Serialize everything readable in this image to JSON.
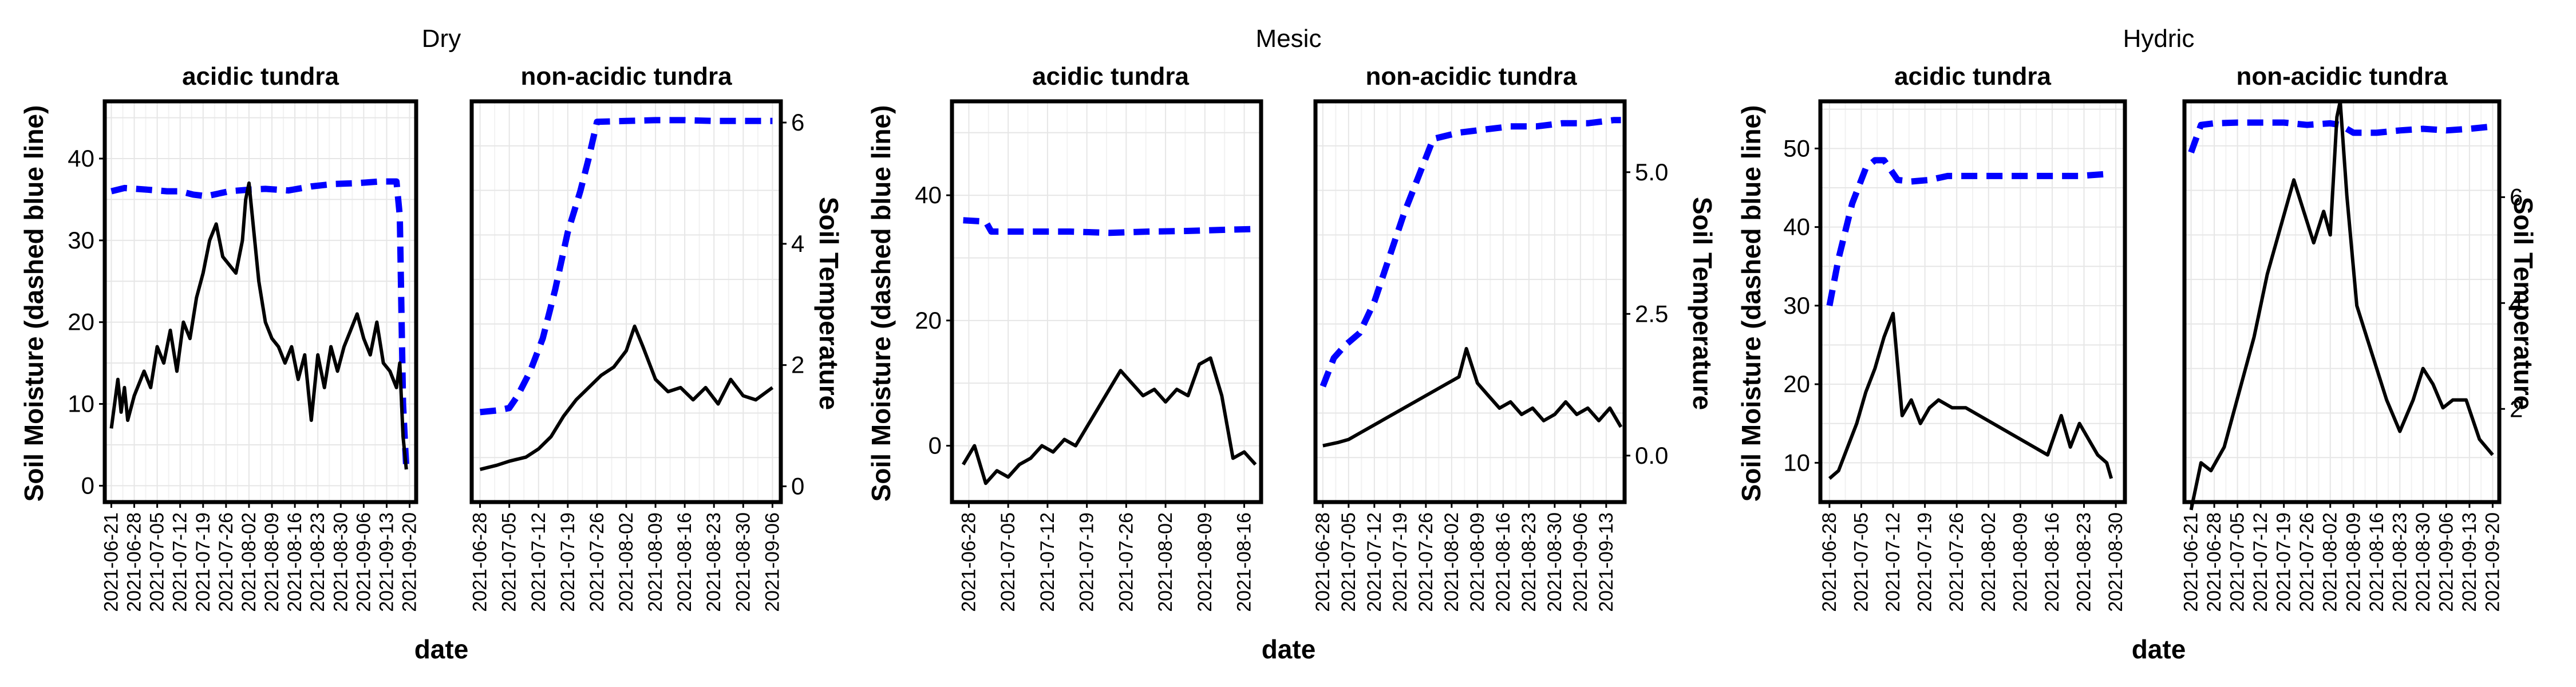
{
  "figure": {
    "groups": [
      {
        "title": "Dry",
        "ylabel": "Soil Moisture (dashed blue line)",
        "y2label": "Soil Temperature",
        "xlabel": "date",
        "panels": [
          {
            "subtitle": "acidic tundra",
            "x_ticks": [
              "2021-06-21",
              "2021-06-28",
              "2021-07-05",
              "2021-07-12",
              "2021-07-19",
              "2021-07-26",
              "2021-08-02",
              "2021-08-09",
              "2021-08-16",
              "2021-08-23",
              "2021-08-30",
              "2021-09-06",
              "2021-09-13",
              "2021-09-20"
            ]
          },
          {
            "subtitle": "non-acidic tundra",
            "x_ticks": [
              "2021-06-28",
              "2021-07-05",
              "2021-07-12",
              "2021-07-19",
              "2021-07-26",
              "2021-08-02",
              "2021-08-09",
              "2021-08-16",
              "2021-08-23",
              "2021-08-30",
              "2021-09-06"
            ]
          }
        ]
      },
      {
        "title": "Mesic",
        "ylabel": "Soil Moisture (dashed blue line)",
        "y2label": "Soil Temperature",
        "xlabel": "date",
        "panels": [
          {
            "subtitle": "acidic tundra",
            "x_ticks": [
              "2021-06-28",
              "2021-07-05",
              "2021-07-12",
              "2021-07-19",
              "2021-07-26",
              "2021-08-02",
              "2021-08-09",
              "2021-08-16"
            ]
          },
          {
            "subtitle": "non-acidic tundra",
            "x_ticks": [
              "2021-06-28",
              "2021-07-05",
              "2021-07-12",
              "2021-07-19",
              "2021-07-26",
              "2021-08-02",
              "2021-08-09",
              "2021-08-16",
              "2021-08-23",
              "2021-08-30",
              "2021-09-06",
              "2021-09-13"
            ]
          }
        ]
      },
      {
        "title": "Hydric",
        "ylabel": "Soil Moisture (dashed blue line)",
        "y2label": "Soil Temperature",
        "xlabel": "date",
        "panels": [
          {
            "subtitle": "acidic tundra",
            "x_ticks": [
              "2021-06-28",
              "2021-07-05",
              "2021-07-12",
              "2021-07-19",
              "2021-07-26",
              "2021-08-02",
              "2021-08-09",
              "2021-08-16",
              "2021-08-23",
              "2021-08-30"
            ]
          },
          {
            "subtitle": "non-acidic tundra",
            "x_ticks": [
              "2021-06-21",
              "2021-06-28",
              "2021-07-05",
              "2021-07-12",
              "2021-07-19",
              "2021-07-26",
              "2021-08-02",
              "2021-08-09",
              "2021-08-16",
              "2021-08-23",
              "2021-08-30",
              "2021-09-06",
              "2021-09-13",
              "2021-09-20"
            ]
          }
        ]
      }
    ]
  },
  "colors": {
    "moisture": "#0000ff",
    "temperature": "#000000",
    "grid": "#e6e6e6",
    "frame": "#000000",
    "text": "#000000"
  },
  "chart_data": [
    {
      "type": "line",
      "group": "Dry",
      "title": "acidic tundra",
      "xlabel": "date",
      "ylabel": "Soil Moisture (dashed blue line)",
      "y2label": "Soil Temperature",
      "xlim": [
        "2021-06-19",
        "2021-09-22"
      ],
      "ylim": [
        -2,
        47
      ],
      "yticks": [
        0,
        10,
        20,
        30,
        40
      ],
      "y2ticks": [],
      "grid": true,
      "series": [
        {
          "name": "Soil Moisture",
          "axis": "left",
          "style": "dashed",
          "x": [
            "2021-06-21",
            "2021-06-25",
            "2021-07-02",
            "2021-07-08",
            "2021-07-12",
            "2021-07-16",
            "2021-07-20",
            "2021-07-27",
            "2021-08-02",
            "2021-08-07",
            "2021-08-14",
            "2021-08-21",
            "2021-08-28",
            "2021-09-04",
            "2021-09-11",
            "2021-09-16",
            "2021-09-17",
            "2021-09-18",
            "2021-09-19"
          ],
          "y": [
            36.0,
            36.4,
            36.2,
            36.0,
            36.0,
            35.6,
            35.4,
            36.0,
            36.2,
            36.3,
            36.1,
            36.6,
            36.9,
            37.0,
            37.2,
            37.2,
            33.0,
            10.0,
            2.0
          ]
        },
        {
          "name": "Soil Temperature",
          "axis": "left",
          "style": "solid",
          "x": [
            "2021-06-21",
            "2021-06-22",
            "2021-06-23",
            "2021-06-24",
            "2021-06-25",
            "2021-06-26",
            "2021-06-28",
            "2021-07-01",
            "2021-07-03",
            "2021-07-05",
            "2021-07-07",
            "2021-07-09",
            "2021-07-11",
            "2021-07-13",
            "2021-07-15",
            "2021-07-17",
            "2021-07-19",
            "2021-07-21",
            "2021-07-23",
            "2021-07-25",
            "2021-07-27",
            "2021-07-29",
            "2021-07-31",
            "2021-08-01",
            "2021-08-02",
            "2021-08-03",
            "2021-08-05",
            "2021-08-07",
            "2021-08-09",
            "2021-08-11",
            "2021-08-13",
            "2021-08-15",
            "2021-08-17",
            "2021-08-19",
            "2021-08-21",
            "2021-08-23",
            "2021-08-25",
            "2021-08-27",
            "2021-08-29",
            "2021-08-31",
            "2021-09-02",
            "2021-09-04",
            "2021-09-06",
            "2021-09-08",
            "2021-09-10",
            "2021-09-12",
            "2021-09-14",
            "2021-09-16",
            "2021-09-17",
            "2021-09-18",
            "2021-09-19"
          ],
          "y": [
            7,
            10,
            13,
            9,
            12,
            8,
            11,
            14,
            12,
            17,
            15,
            19,
            14,
            20,
            18,
            23,
            26,
            30,
            32,
            28,
            27,
            26,
            30,
            35,
            37,
            33,
            25,
            20,
            18,
            17,
            15,
            17,
            13,
            16,
            8,
            16,
            12,
            17,
            14,
            17,
            19,
            21,
            18,
            16,
            20,
            15,
            14,
            12,
            15,
            6,
            2
          ]
        }
      ]
    },
    {
      "type": "line",
      "group": "Dry",
      "title": "non-acidic tundra",
      "xlabel": "date",
      "ylabel": "",
      "y2label": "Soil Temperature",
      "xlim": [
        "2021-06-26",
        "2021-09-08"
      ],
      "ylim": [
        -2,
        47
      ],
      "yticks": [],
      "y2ticks": [
        0,
        2,
        4,
        6
      ],
      "y2lim": [
        -0.26,
        6.35
      ],
      "grid": true,
      "series": [
        {
          "name": "Soil Moisture",
          "axis": "left",
          "style": "dashed",
          "x": [
            "2021-06-28",
            "2021-07-02",
            "2021-07-05",
            "2021-07-07",
            "2021-07-10",
            "2021-07-13",
            "2021-07-16",
            "2021-07-19",
            "2021-07-22",
            "2021-07-24",
            "2021-07-26",
            "2021-08-02",
            "2021-08-09",
            "2021-08-16",
            "2021-08-23",
            "2021-08-30",
            "2021-09-06"
          ],
          "y": [
            9.0,
            9.2,
            9.5,
            11.0,
            14.0,
            18.0,
            24.0,
            31.0,
            36.0,
            40.0,
            44.5,
            44.6,
            44.7,
            44.7,
            44.6,
            44.6,
            44.6
          ]
        },
        {
          "name": "Soil Temperature",
          "axis": "left",
          "style": "solid",
          "x": [
            "2021-06-28",
            "2021-07-02",
            "2021-07-05",
            "2021-07-09",
            "2021-07-12",
            "2021-07-15",
            "2021-07-18",
            "2021-07-21",
            "2021-07-24",
            "2021-07-27",
            "2021-07-30",
            "2021-08-02",
            "2021-08-04",
            "2021-08-06",
            "2021-08-09",
            "2021-08-12",
            "2021-08-15",
            "2021-08-18",
            "2021-08-21",
            "2021-08-24",
            "2021-08-27",
            "2021-08-30",
            "2021-09-02",
            "2021-09-06"
          ],
          "y": [
            2.0,
            2.5,
            3.0,
            3.5,
            4.5,
            6.0,
            8.5,
            10.5,
            12.0,
            13.5,
            14.5,
            16.5,
            19.5,
            17.0,
            13.0,
            11.5,
            12.0,
            10.5,
            12.0,
            10.0,
            13.0,
            11.0,
            10.5,
            12.0
          ]
        }
      ]
    },
    {
      "type": "line",
      "group": "Mesic",
      "title": "acidic tundra",
      "xlabel": "date",
      "ylabel": "Soil Moisture (dashed blue line)",
      "y2label": "",
      "xlim": [
        "2021-06-25",
        "2021-08-19"
      ],
      "ylim": [
        -9,
        55
      ],
      "yticks": [
        0,
        20,
        40
      ],
      "y2ticks": [],
      "grid": true,
      "series": [
        {
          "name": "Soil Moisture",
          "axis": "left",
          "style": "dashed",
          "x": [
            "2021-06-27",
            "2021-07-01",
            "2021-07-02",
            "2021-07-09",
            "2021-07-16",
            "2021-07-23",
            "2021-07-30",
            "2021-08-06",
            "2021-08-13",
            "2021-08-18"
          ],
          "y": [
            36.0,
            35.8,
            34.2,
            34.2,
            34.2,
            34.0,
            34.2,
            34.3,
            34.5,
            34.6
          ]
        },
        {
          "name": "Soil Temperature",
          "axis": "left",
          "style": "solid",
          "x": [
            "2021-06-27",
            "2021-06-29",
            "2021-07-01",
            "2021-07-03",
            "2021-07-05",
            "2021-07-07",
            "2021-07-09",
            "2021-07-11",
            "2021-07-13",
            "2021-07-15",
            "2021-07-17",
            "2021-07-19",
            "2021-07-21",
            "2021-07-23",
            "2021-07-25",
            "2021-07-27",
            "2021-07-29",
            "2021-07-31",
            "2021-08-02",
            "2021-08-04",
            "2021-08-06",
            "2021-08-08",
            "2021-08-10",
            "2021-08-12",
            "2021-08-14",
            "2021-08-16",
            "2021-08-18"
          ],
          "y": [
            -3,
            0,
            -6,
            -4,
            -5,
            -3,
            -2,
            0,
            -1,
            1,
            0,
            3,
            6,
            9,
            12,
            10,
            8,
            9,
            7,
            9,
            8,
            13,
            14,
            8,
            -2,
            -1,
            -3
          ]
        }
      ]
    },
    {
      "type": "line",
      "group": "Mesic",
      "title": "non-acidic tundra",
      "xlabel": "date",
      "ylabel": "",
      "y2label": "Soil Temperature",
      "xlim": [
        "2021-06-26",
        "2021-09-18"
      ],
      "ylim": [
        -9,
        55
      ],
      "yticks": [],
      "y2ticks": [
        0.0,
        2.5,
        5.0
      ],
      "y2lim": [
        -0.82,
        6.25
      ],
      "grid": true,
      "series": [
        {
          "name": "Soil Moisture",
          "axis": "left",
          "style": "dashed",
          "x": [
            "2021-06-28",
            "2021-07-01",
            "2021-07-04",
            "2021-07-08",
            "2021-07-12",
            "2021-07-16",
            "2021-07-20",
            "2021-07-24",
            "2021-07-28",
            "2021-08-04",
            "2021-08-11",
            "2021-08-18",
            "2021-08-25",
            "2021-09-01",
            "2021-09-08",
            "2021-09-15",
            "2021-09-17"
          ],
          "y": [
            9.5,
            14.0,
            16.0,
            18.0,
            23.0,
            30.0,
            37.0,
            43.0,
            49.0,
            50.0,
            50.5,
            51.0,
            51.0,
            51.5,
            51.5,
            52.0,
            52.0
          ]
        },
        {
          "name": "Soil Temperature",
          "axis": "left",
          "style": "solid",
          "x": [
            "2021-06-28",
            "2021-07-02",
            "2021-07-05",
            "2021-07-08",
            "2021-08-01",
            "2021-08-04",
            "2021-08-06",
            "2021-08-09",
            "2021-08-12",
            "2021-08-15",
            "2021-08-18",
            "2021-08-21",
            "2021-08-24",
            "2021-08-27",
            "2021-08-30",
            "2021-09-02",
            "2021-09-05",
            "2021-09-08",
            "2021-09-11",
            "2021-09-14",
            "2021-09-17"
          ],
          "y": [
            0.0,
            0.5,
            1.0,
            2.0,
            10.0,
            11.0,
            15.5,
            10.0,
            8.0,
            6.0,
            7.0,
            5.0,
            6.0,
            4.0,
            5.0,
            7.0,
            5.0,
            6.0,
            4.0,
            6.0,
            3.0
          ]
        }
      ]
    },
    {
      "type": "line",
      "group": "Hydric",
      "title": "acidic tundra",
      "xlabel": "date",
      "ylabel": "Soil Moisture (dashed blue line)",
      "y2label": "",
      "xlim": [
        "2021-06-26",
        "2021-09-01"
      ],
      "ylim": [
        5,
        56
      ],
      "yticks": [
        10,
        20,
        30,
        40,
        50
      ],
      "y2ticks": [],
      "grid": true,
      "series": [
        {
          "name": "Soil Moisture",
          "axis": "left",
          "style": "dashed",
          "x": [
            "2021-06-28",
            "2021-06-30",
            "2021-07-03",
            "2021-07-06",
            "2021-07-08",
            "2021-07-10",
            "2021-07-13",
            "2021-07-16",
            "2021-07-20",
            "2021-07-24",
            "2021-08-01",
            "2021-08-08",
            "2021-08-15",
            "2021-08-22",
            "2021-08-29"
          ],
          "y": [
            30.0,
            36.0,
            43.0,
            47.5,
            48.5,
            48.5,
            46.0,
            45.8,
            46.0,
            46.5,
            46.5,
            46.5,
            46.5,
            46.5,
            46.8
          ]
        },
        {
          "name": "Soil Temperature",
          "axis": "left",
          "style": "solid",
          "x": [
            "2021-06-28",
            "2021-06-30",
            "2021-07-02",
            "2021-07-04",
            "2021-07-06",
            "2021-07-08",
            "2021-07-10",
            "2021-07-12",
            "2021-07-14",
            "2021-07-16",
            "2021-07-18",
            "2021-07-20",
            "2021-07-22",
            "2021-07-25",
            "2021-07-28",
            "2021-08-15",
            "2021-08-18",
            "2021-08-20",
            "2021-08-22",
            "2021-08-24",
            "2021-08-26",
            "2021-08-28",
            "2021-08-29"
          ],
          "y": [
            8,
            9,
            12,
            15,
            19,
            22,
            26,
            29,
            16,
            18,
            15,
            17,
            18,
            17,
            17,
            11,
            16,
            12,
            15,
            13,
            11,
            10,
            8
          ]
        }
      ]
    },
    {
      "type": "line",
      "group": "Hydric",
      "title": "non-acidic tundra",
      "xlabel": "date",
      "ylabel": "",
      "y2label": "Soil Temperature",
      "xlim": [
        "2021-06-19",
        "2021-09-22"
      ],
      "ylim": [
        5,
        56
      ],
      "yticks": [],
      "y2ticks": [
        2,
        4,
        6
      ],
      "y2lim": [
        0.24,
        7.81
      ],
      "grid": true,
      "series": [
        {
          "name": "Soil Moisture",
          "axis": "left",
          "style": "dashed",
          "x": [
            "2021-06-21",
            "2021-06-24",
            "2021-06-28",
            "2021-07-05",
            "2021-07-12",
            "2021-07-19",
            "2021-07-26",
            "2021-08-02",
            "2021-08-05",
            "2021-08-09",
            "2021-08-16",
            "2021-08-23",
            "2021-08-30",
            "2021-09-06",
            "2021-09-13",
            "2021-09-20"
          ],
          "y": [
            49.5,
            53.0,
            53.2,
            53.3,
            53.3,
            53.3,
            53.0,
            53.2,
            53.0,
            52.0,
            52.0,
            52.3,
            52.5,
            52.3,
            52.5,
            52.8
          ]
        },
        {
          "name": "Soil Temperature",
          "axis": "left",
          "style": "solid",
          "x": [
            "2021-06-21",
            "2021-06-24",
            "2021-06-27",
            "2021-07-01",
            "2021-07-10",
            "2021-07-14",
            "2021-07-18",
            "2021-07-22",
            "2021-07-25",
            "2021-07-28",
            "2021-07-31",
            "2021-08-02",
            "2021-08-04",
            "2021-08-05",
            "2021-08-07",
            "2021-08-10",
            "2021-08-13",
            "2021-08-16",
            "2021-08-19",
            "2021-08-23",
            "2021-08-27",
            "2021-08-30",
            "2021-09-02",
            "2021-09-05",
            "2021-09-08",
            "2021-09-12",
            "2021-09-16",
            "2021-09-20"
          ],
          "y": [
            4,
            10,
            9,
            12,
            26,
            34,
            40,
            46,
            42,
            38,
            42,
            39,
            54,
            56,
            44,
            30,
            26,
            22,
            18,
            14,
            18,
            22,
            20,
            17,
            18,
            18,
            13,
            11
          ]
        }
      ]
    }
  ]
}
